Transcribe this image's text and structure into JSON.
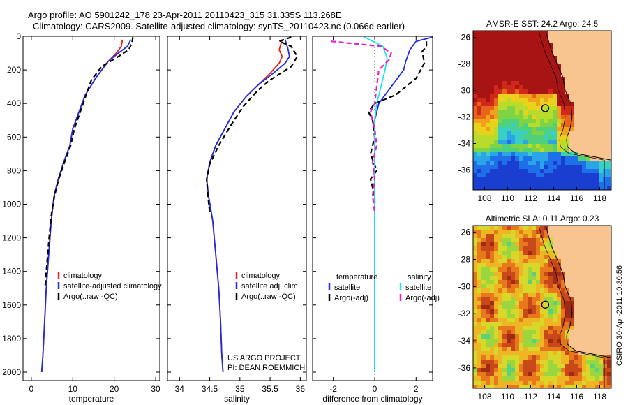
{
  "header": {
    "line1": "Argo profile: AO 5901242_178 23-Apr-2011 20110423_315 31.335S 113.268E",
    "line2": "Climatology: CARS2009. Satellite-adjusted climatology: synTS_20110423.nc (0.066d earlier)"
  },
  "credit": "CSIRO 30-Apr-2011 10:30:56",
  "colors": {
    "clim": "#e8231b",
    "sat": "#1f2de0",
    "argo": "#000000",
    "sal_sat": "#22e4ee",
    "sal_argo": "#e61fd2",
    "land": "#f8c590"
  },
  "chart_data": [
    {
      "type": "line",
      "xlabel": "temperature",
      "xlim": [
        -2,
        31
      ],
      "ylim": [
        2050,
        0
      ],
      "xticks": [
        0,
        10,
        20,
        30
      ],
      "yticks": [
        0,
        200,
        400,
        600,
        800,
        1000,
        1200,
        1400,
        1600,
        1800,
        2000
      ],
      "legend": [
        "climatology",
        "satellite-adjusted climatology",
        "Argo(..raw -QC)"
      ],
      "series": [
        {
          "name": "climatology",
          "points": [
            [
              22,
              20
            ],
            [
              21.7,
              60
            ],
            [
              20.5,
              100
            ],
            [
              18.5,
              150
            ],
            [
              15.5,
              250
            ],
            [
              13,
              350
            ],
            [
              11.5,
              450
            ],
            [
              10,
              550
            ],
            [
              9.3,
              650
            ],
            [
              7.8,
              750
            ],
            [
              6.5,
              850
            ],
            [
              5.5,
              950
            ],
            [
              4.8,
              1100
            ],
            [
              4.2,
              1300
            ],
            [
              3.6,
              1500
            ],
            [
              3.2,
              1700
            ],
            [
              2.8,
              1900
            ],
            [
              2.5,
              2000
            ]
          ]
        },
        {
          "name": "satellite-adjusted climatology",
          "points": [
            [
              24,
              20
            ],
            [
              23.2,
              60
            ],
            [
              21,
              100
            ],
            [
              18.5,
              150
            ],
            [
              15.5,
              250
            ],
            [
              13,
              350
            ],
            [
              11.5,
              450
            ],
            [
              10,
              550
            ],
            [
              9.3,
              650
            ],
            [
              7.8,
              750
            ],
            [
              6.5,
              850
            ],
            [
              5.5,
              950
            ],
            [
              4.8,
              1100
            ],
            [
              4.2,
              1300
            ],
            [
              3.6,
              1500
            ],
            [
              3.2,
              1700
            ],
            [
              2.8,
              1900
            ],
            [
              2.5,
              2000
            ]
          ]
        },
        {
          "name": "Argo(..raw -QC)",
          "dashed": true,
          "points": [
            [
              24.5,
              5
            ],
            [
              24.3,
              40
            ],
            [
              23.5,
              80
            ],
            [
              21,
              120
            ],
            [
              17,
              180
            ],
            [
              14.5,
              260
            ],
            [
              13.2,
              350
            ],
            [
              11.8,
              450
            ],
            [
              10.4,
              550
            ],
            [
              9.5,
              650
            ],
            [
              8,
              750
            ],
            [
              6.6,
              850
            ],
            [
              5.6,
              950
            ],
            [
              4.9,
              1050
            ],
            [
              4.3,
              1200
            ],
            [
              3.8,
              1350
            ],
            [
              3.3,
              1500
            ]
          ]
        }
      ]
    },
    {
      "type": "line",
      "xlabel": "salinity",
      "xlim": [
        33.8,
        36.1
      ],
      "ylim": [
        2050,
        0
      ],
      "xticks": [
        34,
        34.5,
        35,
        35.5,
        36
      ],
      "legend": [
        "climatology",
        "satellite adj. clim.",
        "Argo(..raw -QC)"
      ],
      "annotation": [
        "US ARGO PROJECT",
        "PI: DEAN ROEMMICH"
      ],
      "series": [
        {
          "name": "climatology",
          "points": [
            [
              35.7,
              20
            ],
            [
              35.65,
              80
            ],
            [
              35.7,
              120
            ],
            [
              35.65,
              160
            ],
            [
              35.5,
              220
            ],
            [
              35.3,
              290
            ],
            [
              35.1,
              360
            ],
            [
              34.9,
              450
            ],
            [
              34.75,
              550
            ],
            [
              34.6,
              650
            ],
            [
              34.5,
              750
            ],
            [
              34.45,
              850
            ],
            [
              34.48,
              950
            ],
            [
              34.55,
              1100
            ],
            [
              34.6,
              1300
            ],
            [
              34.65,
              1500
            ],
            [
              34.68,
              1700
            ],
            [
              34.7,
              1900
            ],
            [
              34.72,
              2000
            ]
          ]
        },
        {
          "name": "satellite adj. clim.",
          "points": [
            [
              35.75,
              20
            ],
            [
              35.8,
              80
            ],
            [
              35.82,
              120
            ],
            [
              35.75,
              160
            ],
            [
              35.55,
              220
            ],
            [
              35.3,
              290
            ],
            [
              35.1,
              360
            ],
            [
              34.9,
              450
            ],
            [
              34.75,
              550
            ],
            [
              34.6,
              650
            ],
            [
              34.5,
              750
            ],
            [
              34.45,
              850
            ],
            [
              34.48,
              950
            ],
            [
              34.55,
              1100
            ],
            [
              34.6,
              1300
            ],
            [
              34.65,
              1500
            ],
            [
              34.68,
              1700
            ],
            [
              34.7,
              1900
            ],
            [
              34.72,
              2000
            ]
          ]
        },
        {
          "name": "Argo(..raw -QC)",
          "dashed": true,
          "points": [
            [
              35.85,
              5
            ],
            [
              35.65,
              30
            ],
            [
              35.85,
              60
            ],
            [
              35.95,
              120
            ],
            [
              35.85,
              180
            ],
            [
              35.5,
              260
            ],
            [
              35.3,
              320
            ],
            [
              35.05,
              420
            ],
            [
              34.85,
              530
            ],
            [
              34.65,
              650
            ],
            [
              34.5,
              760
            ],
            [
              34.45,
              850
            ],
            [
              34.47,
              950
            ],
            [
              34.5,
              1050
            ]
          ]
        }
      ]
    },
    {
      "type": "line",
      "xlabel": "difference from climatology",
      "xlim": [
        -3,
        2.8
      ],
      "ylim": [
        2050,
        0
      ],
      "xticks": [
        -2,
        0,
        2
      ],
      "legend_groups": [
        {
          "title": "temperature",
          "items": [
            "satellite",
            "Argo(-adj)"
          ]
        },
        {
          "title": "salinity",
          "items": [
            "satellite",
            "Argo(-adj)"
          ]
        }
      ],
      "series": [
        {
          "name": "satellite",
          "group": "temperature",
          "points": [
            [
              2.8,
              5
            ],
            [
              2,
              30
            ],
            [
              1.7,
              80
            ],
            [
              1.5,
              150
            ],
            [
              1.4,
              200
            ],
            [
              0.8,
              300
            ],
            [
              0.2,
              400
            ],
            [
              0,
              500
            ],
            [
              0,
              1000
            ],
            [
              0,
              2000
            ]
          ]
        },
        {
          "name": "Argo(-adj)",
          "group": "temperature",
          "dashed": true,
          "points": [
            [
              2.5,
              30
            ],
            [
              2.5,
              60
            ],
            [
              2.3,
              90
            ],
            [
              2.4,
              160
            ],
            [
              2,
              250
            ],
            [
              1,
              350
            ],
            [
              0,
              400
            ],
            [
              -0.3,
              450
            ],
            [
              -0.1,
              500
            ],
            [
              0,
              600
            ],
            [
              -0.2,
              700
            ],
            [
              0.1,
              800
            ],
            [
              -0.2,
              850
            ],
            [
              0,
              950
            ],
            [
              0,
              1000
            ]
          ]
        },
        {
          "name": "satellite",
          "group": "salinity",
          "points": [
            [
              -0.5,
              5
            ],
            [
              0.4,
              60
            ],
            [
              0.6,
              130
            ],
            [
              0.5,
              200
            ],
            [
              0.3,
              300
            ],
            [
              0.1,
              400
            ],
            [
              0,
              500
            ],
            [
              0,
              1000
            ],
            [
              0,
              2000
            ]
          ]
        },
        {
          "name": "Argo(-adj)",
          "group": "salinity",
          "dashed": true,
          "points": [
            [
              -2.1,
              30
            ],
            [
              -1.3,
              40
            ],
            [
              0.3,
              60
            ],
            [
              0.8,
              100
            ],
            [
              0.7,
              140
            ],
            [
              0.2,
              200
            ],
            [
              0.1,
              300
            ],
            [
              0,
              400
            ],
            [
              -0.2,
              450
            ],
            [
              0,
              550
            ],
            [
              0.1,
              650
            ],
            [
              -0.1,
              750
            ],
            [
              0,
              850
            ],
            [
              -0.1,
              950
            ],
            [
              0,
              1050
            ]
          ]
        }
      ]
    },
    {
      "type": "heatmap",
      "title": "AMSR-E SST: 24.2 Argo: 24.5",
      "xlim": [
        107,
        119
      ],
      "ylim": [
        -37.5,
        -25.5
      ],
      "xticks": [
        108,
        110,
        112,
        114,
        116,
        118
      ],
      "yticks": [
        -26,
        -28,
        -30,
        -32,
        -34,
        -36
      ],
      "marker": {
        "lon": 113.268,
        "lat": -31.335
      }
    },
    {
      "type": "heatmap",
      "title": "Altimetric SLA: 0.11 Argo: 0.23",
      "xlim": [
        107,
        119
      ],
      "ylim": [
        -37.5,
        -25.5
      ],
      "xticks": [
        108,
        110,
        112,
        114,
        116,
        118
      ],
      "yticks": [
        -26,
        -28,
        -30,
        -32,
        -34,
        -36
      ],
      "marker": {
        "lon": 113.268,
        "lat": -31.335
      }
    }
  ]
}
